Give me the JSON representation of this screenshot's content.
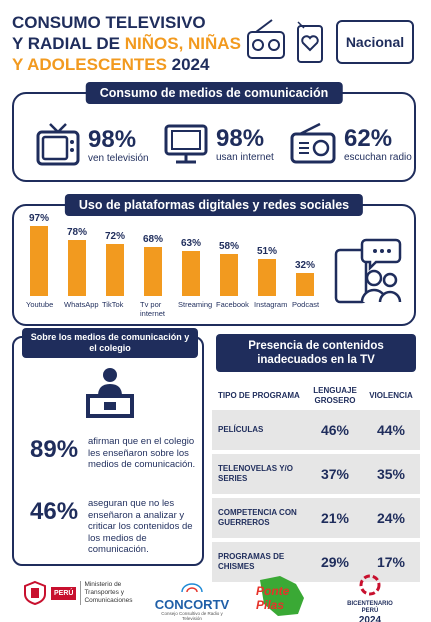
{
  "header": {
    "title_line1": "CONSUMO TELEVISIVO",
    "title_line2a": "Y RADIAL DE ",
    "title_line2b": "NIÑOS, NIÑAS",
    "title_line3a": "Y ADOLESCENTES",
    "title_line3b": " 2024",
    "badge": "Nacional"
  },
  "consumo": {
    "heading": "Consumo de medios de comunicación",
    "stats": [
      {
        "value": "98%",
        "label": "ven televisión"
      },
      {
        "value": "98%",
        "label": "usan internet"
      },
      {
        "value": "62%",
        "label": "escuchan radio"
      }
    ]
  },
  "plataformas": {
    "heading": "Uso de plataformas digitales y redes sociales"
  },
  "chart_data": {
    "type": "bar",
    "categories": [
      "Youtube",
      "WhatsApp",
      "TikTok",
      "Tv por internet",
      "Streaming",
      "Facebook",
      "Instagram",
      "Podcast"
    ],
    "category_lines": [
      [
        "Youtube"
      ],
      [
        "WhatsApp"
      ],
      [
        "TikTok"
      ],
      [
        "Tv por",
        "internet"
      ],
      [
        "Streaming"
      ],
      [
        "Facebook"
      ],
      [
        "Instagram"
      ],
      [
        "Podcast"
      ]
    ],
    "values": [
      97,
      78,
      72,
      68,
      63,
      58,
      51,
      32
    ],
    "value_labels": [
      "97%",
      "78%",
      "72%",
      "68%",
      "63%",
      "58%",
      "51%",
      "32%"
    ],
    "ylim": [
      0,
      100
    ],
    "bar_color": "#f29a1f"
  },
  "colegio": {
    "heading": "Sobre los medios de comunicación y el colegio",
    "stat1": {
      "value": "89%",
      "desc": "afirman que en el colegio les enseñaron sobre los medios de comunicación."
    },
    "stat2": {
      "value": "46%",
      "desc": "aseguran que no les enseñaron a analizar y criticar los contenidos de los medios de comunicación."
    }
  },
  "inadecuados": {
    "heading": "Presencia de contenidos inadecuados en la TV",
    "columns": [
      "TIPO DE PROGRAMA",
      "LENGUAJE GROSERO",
      "VIOLENCIA"
    ],
    "rows": [
      {
        "tipo": "PELÍCULAS",
        "grosero": "46%",
        "violencia": "44%"
      },
      {
        "tipo": "TELENOVELAS Y/O SERIES",
        "grosero": "37%",
        "violencia": "35%"
      },
      {
        "tipo": "COMPETENCIA CON GUERREROS",
        "grosero": "21%",
        "violencia": "24%"
      },
      {
        "tipo": "PROGRAMAS DE CHISMES",
        "grosero": "29%",
        "violencia": "17%"
      }
    ]
  },
  "footer": {
    "peru": "PERÚ",
    "ministerio": "Ministerio de Transportes y Comunicaciones",
    "concortv": "CONCORTV",
    "concortv_sub": "Consejo Consultivo de Radio y Televisión",
    "ponte": "Ponte Pilas",
    "bicentenario": "BICENTENARIO",
    "bic_peru": "PERÚ",
    "bic_year": "2024"
  },
  "colors": {
    "navy": "#1f2d5c",
    "orange": "#f29a1f",
    "gray": "#e6e6e6"
  },
  "icons": [
    "retro-radio-icon",
    "heart-phone-icon",
    "television-icon",
    "monitor-icon",
    "radio-icon",
    "phone-chat-users-icon",
    "school-desk-icon"
  ]
}
